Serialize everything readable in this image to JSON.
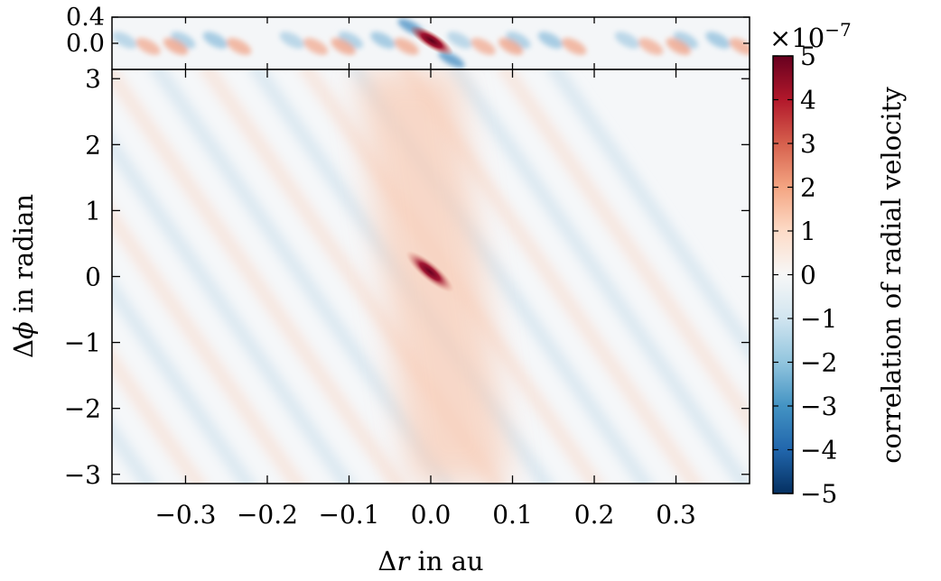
{
  "chart_data": [
    {
      "type": "heatmap",
      "panel": "top-zoom",
      "title": "",
      "xlabel": "",
      "ylabel": "",
      "xlim": [
        -0.39,
        0.39
      ],
      "ylim": [
        -0.4,
        0.4
      ],
      "yticks": [
        0.0,
        0.4
      ],
      "ytick_labels": [
        "0.0",
        "0.4"
      ],
      "grid": false,
      "peak": {
        "x": 0.0,
        "y": 0.0,
        "value": 5e-07
      },
      "pattern": "periodic diagonal red/blue stripes along Δr with period about 0.2 au"
    },
    {
      "type": "heatmap",
      "panel": "main",
      "title": "",
      "xlabel": "Δr in au",
      "xlabel_italic_var": "r",
      "ylabel": "Δϕ in radian",
      "ylabel_italic_var": "ϕ",
      "xlim": [
        -0.39,
        0.39
      ],
      "ylim": [
        -3.14,
        3.14
      ],
      "xticks": [
        -0.3,
        -0.2,
        -0.1,
        0.0,
        0.1,
        0.2,
        0.3
      ],
      "xtick_labels": [
        "−0.3",
        "−0.2",
        "−0.1",
        "0.0",
        "0.1",
        "0.2",
        "0.3"
      ],
      "yticks": [
        -3,
        -2,
        -1,
        0,
        1,
        2,
        3
      ],
      "ytick_labels": [
        "−3",
        "−2",
        "−1",
        "0",
        "1",
        "2",
        "3"
      ],
      "grid": false,
      "peak": {
        "x": 0.0,
        "y": 0.0,
        "value": 5e-07
      },
      "pattern": "broad positive diagonal band through the origin with weak tilted stripes elsewhere"
    }
  ],
  "colorbar": {
    "label": "correlation of radial velocity",
    "colormap": "RdBu_r",
    "vmin": -5,
    "vmax": 5,
    "ticks": [
      5,
      4,
      3,
      2,
      1,
      0,
      -1,
      -2,
      -3,
      -4,
      -5
    ],
    "tick_labels": [
      "5",
      "4",
      "3",
      "2",
      "1",
      "0",
      "−1",
      "−2",
      "−3",
      "−4",
      "−5"
    ],
    "multiplier_base": "×10",
    "multiplier_exponent": "−7",
    "colors": [
      "#053061",
      "#2166ac",
      "#4393c3",
      "#92c5de",
      "#d1e5f0",
      "#f7f7f7",
      "#fddbc7",
      "#f4a582",
      "#d6604d",
      "#b2182b",
      "#67001f"
    ]
  }
}
